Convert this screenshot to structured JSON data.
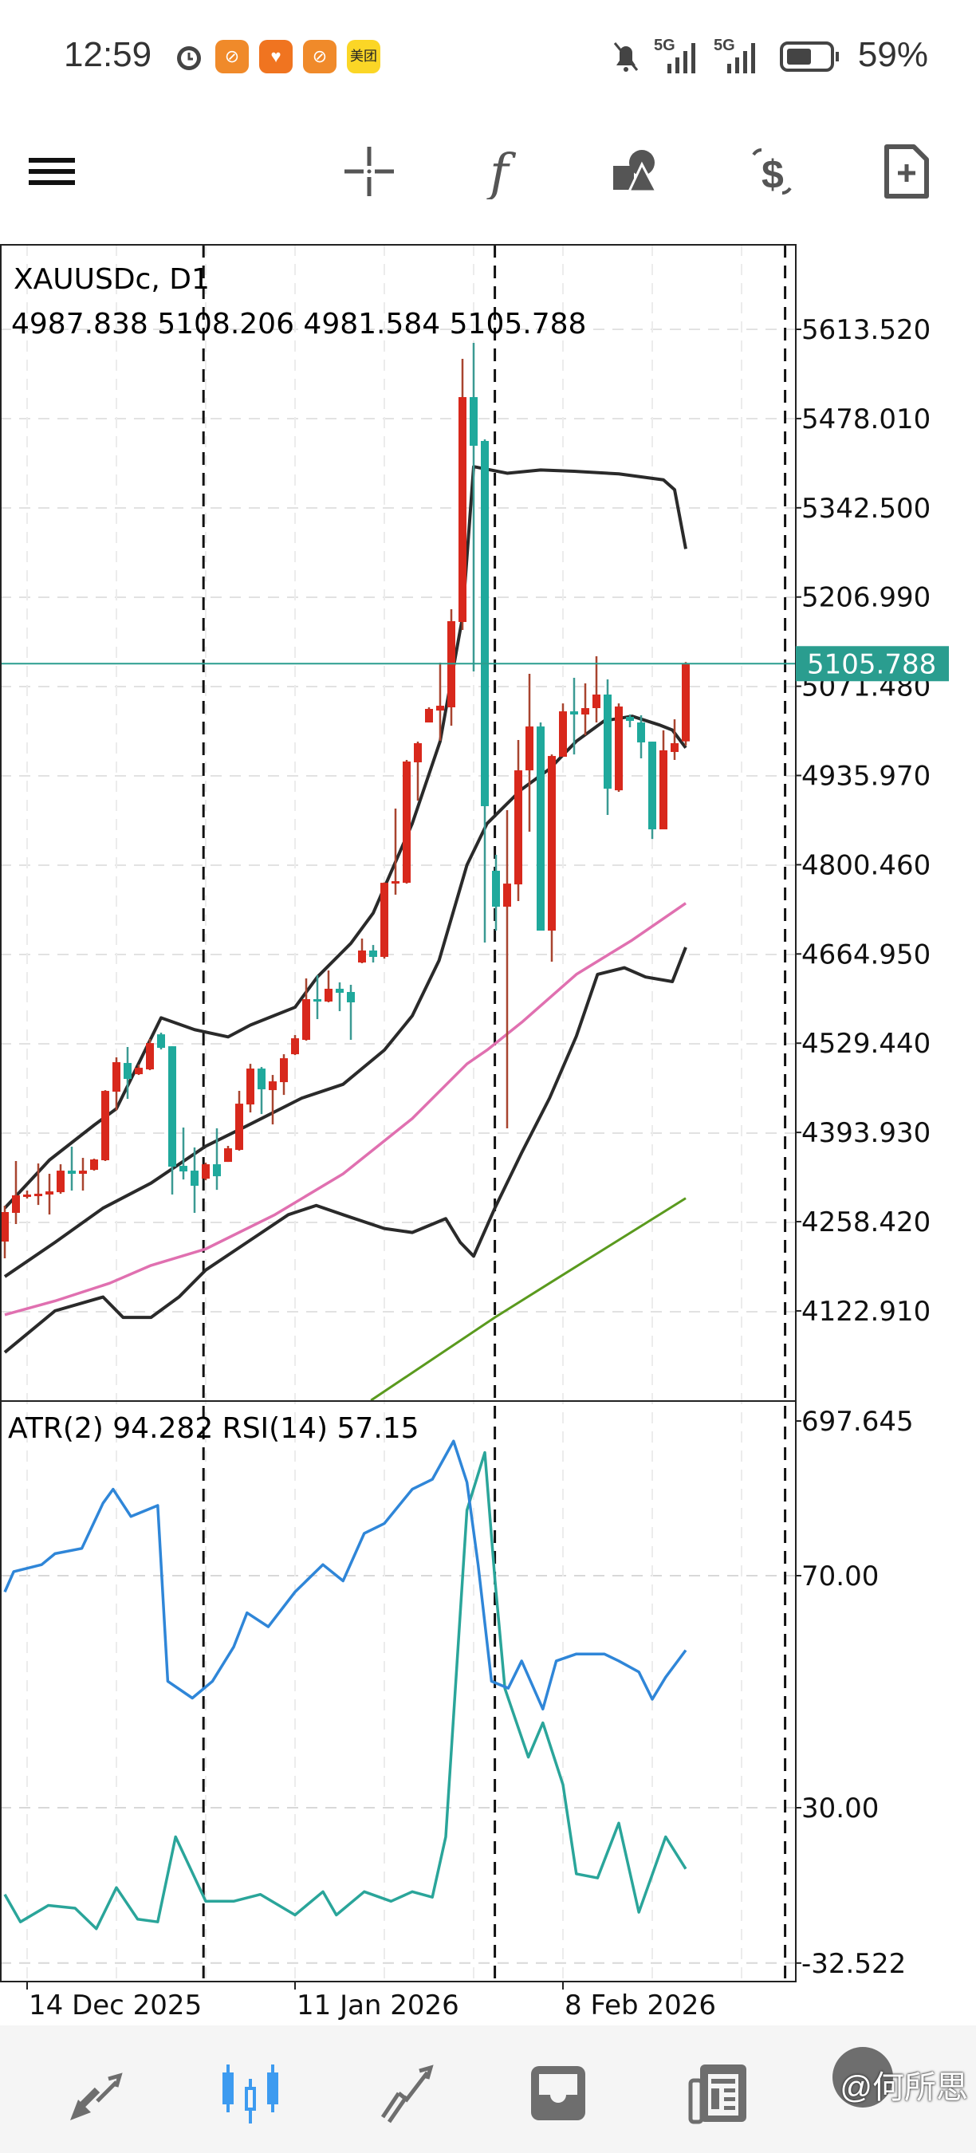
{
  "status_bar": {
    "time": "12:59",
    "app_badge": "美团",
    "network_1": "5G",
    "network_2": "5G",
    "battery": "59%",
    "icons": [
      "alarm-icon",
      "app-icon",
      "health-icon",
      "app-icon",
      "meituan-icon",
      "mute-bell-icon",
      "signal-icon",
      "signal-icon",
      "battery-icon"
    ]
  },
  "toolbar": {
    "icons": [
      "menu-icon",
      "crosshair-icon",
      "indicators-f-icon",
      "objects-shapes-icon",
      "trade-dollar-icon",
      "new-order-document-icon"
    ]
  },
  "chart": {
    "symbol_label": "XAUUSDc, D1",
    "ohlc_label": "4987.838 5108.206 4981.584 5105.788",
    "indicator_label": "ATR(2) 94.282 RSI(14) 57.15",
    "current_price_label": "5105.788",
    "price_axis_labels": [
      "5613.520",
      "5478.010",
      "5342.500",
      "5206.990",
      "5071.480",
      "4935.970",
      "4800.460",
      "4664.950",
      "4529.440",
      "4393.930",
      "4258.420",
      "4122.910"
    ],
    "indicator_axis_labels": [
      "697.645",
      "70.00",
      "30.00",
      "-32.522"
    ],
    "date_labels": [
      {
        "label": "14 Dec 2025",
        "bar": 2
      },
      {
        "label": "11 Jan 2026",
        "bar": 26
      },
      {
        "label": "8 Feb 2026",
        "bar": 50
      }
    ],
    "colors": {
      "bull": "#d8281c",
      "bear": "#1fa99c",
      "bands": "#2a2a2a",
      "ma_pink": "#e070b0",
      "ma_green": "#5a9a1e",
      "rsi": "#2f86d8",
      "atr": "#2aa59a",
      "price_line": "#2a9d8f"
    }
  },
  "chart_data": {
    "type": "candlestick",
    "symbol": "XAUUSDc",
    "timeframe": "D1",
    "ylim": [
      3987,
      5700
    ],
    "grid": true,
    "candles": [
      [
        4228.2,
        4282.6,
        4202.7,
        4273.0
      ],
      [
        4271.8,
        4350.5,
        4254.8,
        4298.4
      ],
      [
        4296.0,
        4305.6,
        4293.5,
        4299.6
      ],
      [
        4298.4,
        4346.8,
        4283.8,
        4300.8
      ],
      [
        4299.6,
        4331.1,
        4269.3,
        4304.4
      ],
      [
        4303.2,
        4345.6,
        4300.8,
        4335.9
      ],
      [
        4335.9,
        4372.3,
        4305.6,
        4331.1
      ],
      [
        4331.1,
        4355.3,
        4305.6,
        4335.9
      ],
      [
        4337.1,
        4354.1,
        4335.9,
        4352.9
      ],
      [
        4351.7,
        4458.2,
        4350.5,
        4457.0
      ],
      [
        4455.8,
        4507.9,
        4427.7,
        4500.6
      ],
      [
        4499.4,
        4523.6,
        4444.9,
        4475.2
      ],
      [
        4482.4,
        4496.9,
        4481.2,
        4492.1
      ],
      [
        4489.7,
        4535.7,
        4488.5,
        4529.6
      ],
      [
        4542.9,
        4545.4,
        4520.0,
        4522.4
      ],
      [
        4524.8,
        4524.8,
        4299.6,
        4341.9
      ],
      [
        4343.2,
        4401.3,
        4322.5,
        4334.7
      ],
      [
        4335.9,
        4371.1,
        4271.8,
        4312.9
      ],
      [
        4323.7,
        4348.0,
        4321.3,
        4345.6
      ],
      [
        4345.6,
        4400.1,
        4306.8,
        4327.4
      ],
      [
        4349.2,
        4373.5,
        4349.2,
        4369.8
      ],
      [
        4367.4,
        4457.0,
        4366.2,
        4437.6
      ],
      [
        4436.4,
        4498.1,
        4424.3,
        4490.9
      ],
      [
        4490.9,
        4493.3,
        4421.8,
        4459.4
      ],
      [
        4458.2,
        4481.2,
        4406.1,
        4471.5
      ],
      [
        4470.3,
        4512.7,
        4450.9,
        4506.6
      ],
      [
        4512.7,
        4541.8,
        4511.5,
        4536.9
      ],
      [
        4534.5,
        4627.8,
        4533.3,
        4596.3
      ],
      [
        4596.3,
        4632.6,
        4566.0,
        4592.7
      ],
      [
        4592.7,
        4639.9,
        4591.5,
        4612.1
      ],
      [
        4612.1,
        4621.8,
        4578.1,
        4606.0
      ],
      [
        4607.2,
        4618.1,
        4534.5,
        4591.5
      ],
      [
        4652.0,
        4688.3,
        4650.8,
        4670.2
      ],
      [
        4670.2,
        4678.6,
        4652.0,
        4660.5
      ],
      [
        4660.5,
        4773.6,
        4658.0,
        4773.0
      ],
      [
        4771.8,
        4885.7,
        4754.9,
        4775.5
      ],
      [
        4773.0,
        4959.6,
        4771.8,
        4957.2
      ],
      [
        4956.0,
        4987.4,
        4897.8,
        4985.0
      ],
      [
        5016.5,
        5039.5,
        5016.5,
        5037.1
      ],
      [
        5034.6,
        5107.3,
        4988.6,
        5041.9
      ],
      [
        5039.5,
        5188.5,
        5011.6,
        5170.3
      ],
      [
        5169.1,
        5568.7,
        5157.0,
        5510.6
      ],
      [
        5510.6,
        5592.9,
        5094.0,
        5436.7
      ],
      [
        5444.0,
        5446.4,
        4682.3,
        4889.4
      ],
      [
        4791.3,
        4815.5,
        4700.4,
        4736.7
      ],
      [
        4736.7,
        4883.3,
        4400.1,
        4771.8
      ],
      [
        4770.6,
        4989.9,
        4745.2,
        4943.8
      ],
      [
        4943.8,
        5090.4,
        4850.6,
        5010.4
      ],
      [
        5010.4,
        5016.5,
        4700.4,
        4700.4
      ],
      [
        4700.4,
        4968.0,
        4653.2,
        4965.6
      ],
      [
        4964.4,
        5045.5,
        4964.4,
        5033.4
      ],
      [
        5033.4,
        5084.3,
        4968.0,
        5028.6
      ],
      [
        5028.6,
        5075.8,
        4997.1,
        5038.3
      ],
      [
        5038.3,
        5117.0,
        5016.5,
        5058.9
      ],
      [
        5058.9,
        5081.9,
        4876.0,
        4915.9
      ],
      [
        4913.5,
        5045.5,
        4911.1,
        5040.7
      ],
      [
        5025.0,
        5028.6,
        5009.2,
        5018.9
      ],
      [
        5016.5,
        5027.4,
        4962.0,
        4986.2
      ],
      [
        4987.4,
        4987.4,
        4839.6,
        4854.2
      ],
      [
        4854.2,
        5004.5,
        4854.2,
        4974.2
      ],
      [
        4971.7,
        5021.3,
        4959.6,
        4985.0
      ],
      [
        4987.838,
        5108.206,
        4981.584,
        5105.788
      ]
    ],
    "overlays": {
      "bollinger_upper": [
        [
          0,
          4279
        ],
        [
          4,
          4352
        ],
        [
          8,
          4405
        ],
        [
          10,
          4430
        ],
        [
          14,
          4568
        ],
        [
          17,
          4550
        ],
        [
          20,
          4539
        ],
        [
          22,
          4557
        ],
        [
          26,
          4584
        ],
        [
          28,
          4630
        ],
        [
          31,
          4681
        ],
        [
          33,
          4727
        ],
        [
          36.5,
          4863
        ],
        [
          39,
          4988
        ],
        [
          41,
          5176
        ],
        [
          42,
          5405
        ],
        [
          45,
          5395
        ],
        [
          48,
          5400
        ],
        [
          51,
          5398
        ],
        [
          55,
          5394
        ],
        [
          59,
          5385
        ],
        [
          60,
          5370
        ],
        [
          61,
          5280
        ]
      ],
      "bollinger_middle": [
        [
          0,
          4175
        ],
        [
          4.5,
          4227
        ],
        [
          8.8,
          4279
        ],
        [
          13.1,
          4317
        ],
        [
          18,
          4373
        ],
        [
          21.7,
          4404
        ],
        [
          26.6,
          4446
        ],
        [
          30.3,
          4467
        ],
        [
          34,
          4519
        ],
        [
          36.5,
          4571
        ],
        [
          38.9,
          4655
        ],
        [
          41.4,
          4800
        ],
        [
          43.2,
          4863
        ],
        [
          46.3,
          4915
        ],
        [
          48.8,
          4946
        ],
        [
          51.2,
          4988
        ],
        [
          53.7,
          5019
        ],
        [
          56.2,
          5026
        ],
        [
          58.6,
          5013
        ],
        [
          59.8,
          5005
        ],
        [
          61,
          4978
        ]
      ],
      "bollinger_lower": [
        [
          0,
          4060
        ],
        [
          4.5,
          4123
        ],
        [
          8.8,
          4144
        ],
        [
          10.6,
          4113
        ],
        [
          13.1,
          4113
        ],
        [
          15.6,
          4144
        ],
        [
          18,
          4185
        ],
        [
          21.7,
          4227
        ],
        [
          25.4,
          4269
        ],
        [
          27.9,
          4283
        ],
        [
          30.3,
          4269
        ],
        [
          34,
          4248
        ],
        [
          36.5,
          4242
        ],
        [
          39.5,
          4263
        ],
        [
          40.8,
          4227
        ],
        [
          42,
          4206
        ],
        [
          43.9,
          4279
        ],
        [
          46.3,
          4363
        ],
        [
          48.8,
          4446
        ],
        [
          51.2,
          4540
        ],
        [
          53.1,
          4634
        ],
        [
          55.5,
          4644
        ],
        [
          57.4,
          4630
        ],
        [
          59.8,
          4623
        ],
        [
          61,
          4675
        ]
      ],
      "ma_pink": [
        [
          0,
          4117
        ],
        [
          4.5,
          4138
        ],
        [
          9.4,
          4165
        ],
        [
          13.1,
          4192
        ],
        [
          18,
          4217
        ],
        [
          24.2,
          4269
        ],
        [
          30.3,
          4331
        ],
        [
          36.5,
          4415
        ],
        [
          41.4,
          4498
        ],
        [
          43.2,
          4519
        ],
        [
          46.3,
          4561
        ],
        [
          51.2,
          4634
        ],
        [
          56.2,
          4686
        ],
        [
          61,
          4742
        ]
      ],
      "ma_green": [
        [
          32.8,
          3987
        ],
        [
          43.9,
          4113
        ],
        [
          48.8,
          4165
        ],
        [
          61,
          4294
        ]
      ]
    },
    "indicators": {
      "rsi_period": 14,
      "rsi_levels": [
        70,
        30
      ],
      "rsi": [
        [
          0,
          67.2
        ],
        [
          0.8,
          70.7
        ],
        [
          3.3,
          71.9
        ],
        [
          4.5,
          73.8
        ],
        [
          6.9,
          74.7
        ],
        [
          8.8,
          82.5
        ],
        [
          9.7,
          84.9
        ],
        [
          11.3,
          80.2
        ],
        [
          13.7,
          82.1
        ],
        [
          14.6,
          51.8
        ],
        [
          16.8,
          48.9
        ],
        [
          18.6,
          51.8
        ],
        [
          20.5,
          57.7
        ],
        [
          21.7,
          63.6
        ],
        [
          23.6,
          61.2
        ],
        [
          26,
          67.2
        ],
        [
          28.5,
          71.9
        ],
        [
          30.3,
          69.1
        ],
        [
          32.2,
          77.3
        ],
        [
          34,
          79.0
        ],
        [
          36.5,
          84.9
        ],
        [
          38.3,
          86.6
        ],
        [
          40.2,
          93.2
        ],
        [
          41.4,
          86.1
        ],
        [
          42.4,
          71.9
        ],
        [
          43.6,
          51.8
        ],
        [
          45.1,
          50.6
        ],
        [
          46.3,
          55.3
        ],
        [
          48.2,
          47.0
        ],
        [
          49.4,
          55.3
        ],
        [
          51.2,
          56.5
        ],
        [
          53.7,
          56.5
        ],
        [
          55,
          55.3
        ],
        [
          56.8,
          53.4
        ],
        [
          58,
          48.7
        ],
        [
          59.2,
          52.5
        ],
        [
          61,
          57.15
        ]
      ],
      "atr_period": 2,
      "atr_range": [
        -32.522,
        697.645
      ],
      "atr": [
        [
          0,
          59.9
        ],
        [
          1.4,
          22.9
        ],
        [
          3.9,
          45.1
        ],
        [
          6.3,
          41.4
        ],
        [
          8.2,
          13.7
        ],
        [
          10,
          69.1
        ],
        [
          11.9,
          26.6
        ],
        [
          13.7,
          22.9
        ],
        [
          15.3,
          137.5
        ],
        [
          18,
          50.7
        ],
        [
          20.5,
          50.7
        ],
        [
          22.9,
          59.9
        ],
        [
          26,
          32.2
        ],
        [
          28.5,
          63.6
        ],
        [
          29.7,
          32.2
        ],
        [
          32.2,
          63.6
        ],
        [
          34.6,
          50.7
        ],
        [
          36.5,
          63.6
        ],
        [
          38.3,
          56.2
        ],
        [
          39.5,
          137.5
        ],
        [
          41.4,
          577.5
        ],
        [
          43,
          655.2
        ],
        [
          43.9,
          485.1
        ],
        [
          44.8,
          337.2
        ],
        [
          46.9,
          244.8
        ],
        [
          48.2,
          291.0
        ],
        [
          50,
          207.8
        ],
        [
          51.2,
          87.6
        ],
        [
          53.1,
          82.1
        ],
        [
          55,
          156.0
        ],
        [
          56.8,
          35.9
        ],
        [
          59.2,
          137.5
        ],
        [
          61,
          94.282
        ]
      ]
    },
    "period_separators_bars": [
      17.8,
      43.9,
      69.9
    ]
  },
  "bottom_nav": {
    "icons": [
      "quotes-arrows-icon",
      "chart-candles-icon",
      "trade-icon",
      "history-inbox-icon",
      "news-icon",
      "settings-avatar-icon"
    ],
    "active": "chart-candles-icon",
    "active_color": "#3d9bf0",
    "inactive_color": "#6e6e6e"
  },
  "watermark": "@何所思"
}
